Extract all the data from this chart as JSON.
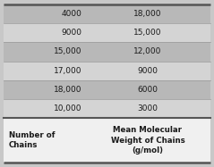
{
  "col1_header": "Number of\nChains",
  "col2_header": "Mean Molecular\nWeight of Chains\n(g/mol)",
  "rows": [
    [
      "10,000",
      "3000"
    ],
    [
      "18,000",
      "6000"
    ],
    [
      "17,000",
      "9000"
    ],
    [
      "15,000",
      "12,000"
    ],
    [
      "9000",
      "15,000"
    ],
    [
      "4000",
      "18,000"
    ]
  ],
  "row_color_light": "#d4d4d4",
  "row_color_dark": "#b8b8b8",
  "header_bg": "#f0f0f0",
  "border_color": "#555555",
  "text_color": "#1a1a1a",
  "fig_bg": "#c8c8c8",
  "outer_border": "#555555"
}
